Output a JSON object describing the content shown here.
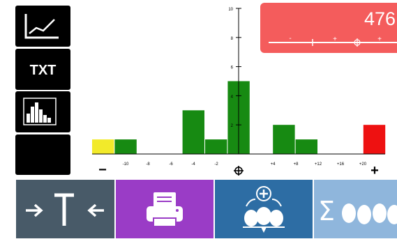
{
  "sidebar": {
    "chart_icon": "line-chart-icon",
    "txt_label": "TXT",
    "histogram_icon": "histogram-icon"
  },
  "display": {
    "value": "476",
    "scale_minus": "-",
    "scale_plus_1": "+",
    "scale_plus_2": "+"
  },
  "chart_data": {
    "type": "bar",
    "x_tick_labels": [
      "-10",
      "-8",
      "-6",
      "-4",
      "-2",
      "+4",
      "+8",
      "+12",
      "+16",
      "+20"
    ],
    "y_tick_labels": [
      "2",
      "4",
      "6",
      "8",
      "10"
    ],
    "ylim": [
      0,
      10
    ],
    "minus_symbol": "−",
    "plus_symbol": "+",
    "bars": [
      {
        "index": 0,
        "value": 1,
        "color": "#f2ea2a"
      },
      {
        "index": 1,
        "value": 1,
        "color": "#178a12"
      },
      {
        "index": 4,
        "value": 3,
        "color": "#178a12"
      },
      {
        "index": 5,
        "value": 1,
        "color": "#178a12"
      },
      {
        "index": 6,
        "value": 5,
        "color": "#178a12"
      },
      {
        "index": 8,
        "value": 2,
        "color": "#178a12"
      },
      {
        "index": 9,
        "value": 1,
        "color": "#178a12"
      },
      {
        "index": 12,
        "value": 2,
        "color": "#ee1111"
      }
    ]
  },
  "bottom_bar": {
    "tare_icon": "tare-icon",
    "print_icon": "printer-icon",
    "add_icon": "add-to-total-icon",
    "sum_icon": "sum-total-icon"
  },
  "colors": {
    "green": "#178a12",
    "yellow": "#f2ea2a",
    "red": "#ee1111",
    "panel_red": "#f45c5c"
  }
}
